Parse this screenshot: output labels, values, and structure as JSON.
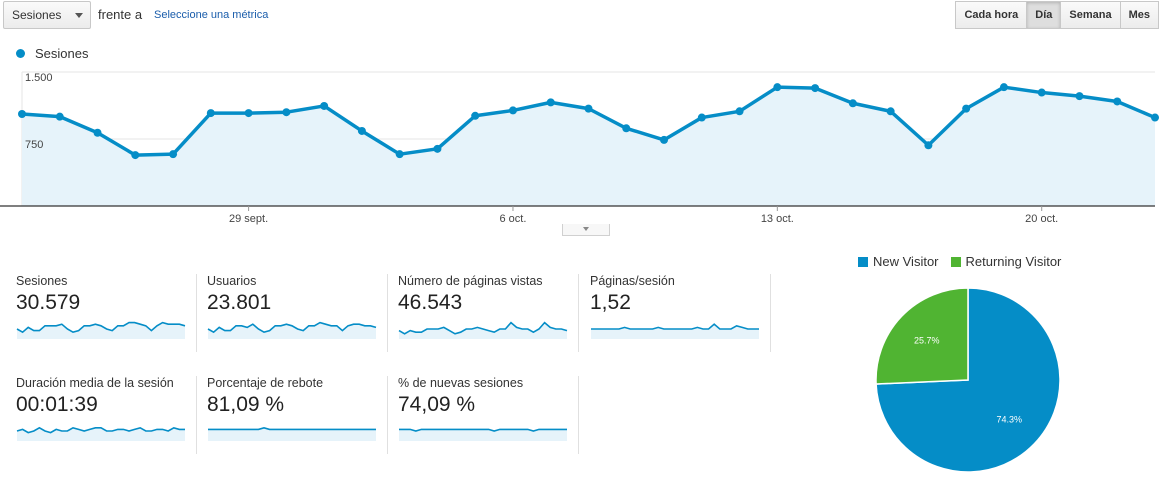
{
  "toolbar": {
    "metric_select": "Sesiones",
    "versus_label": "frente a",
    "select_metric_link": "Seleccione una métrica",
    "granularity": [
      "Cada hora",
      "Día",
      "Semana",
      "Mes"
    ],
    "granularity_selected": "Día"
  },
  "colors": {
    "accent": "#058dc7",
    "returning": "#50b432",
    "area_fill": "#e6f3fa"
  },
  "chart_data": [
    {
      "type": "line",
      "legend": [
        "Sesiones"
      ],
      "y_ticks": [
        "1.500",
        "750"
      ],
      "x_tick_labels": [
        "29 sept.",
        "6 oct.",
        "13 oct.",
        "20 oct."
      ],
      "ylim": [
        0,
        1500
      ],
      "series": [
        {
          "name": "Sesiones",
          "values": [
            1030,
            1000,
            820,
            570,
            580,
            1040,
            1040,
            1050,
            1120,
            840,
            580,
            640,
            1010,
            1070,
            1160,
            1090,
            870,
            740,
            990,
            1060,
            1330,
            1320,
            1150,
            1060,
            680,
            1090,
            1330,
            1270,
            1230,
            1170,
            990
          ]
        }
      ]
    },
    {
      "type": "pie",
      "legend": [
        "New Visitor",
        "Returning Visitor"
      ],
      "slices": [
        {
          "name": "New Visitor",
          "value": 74.3,
          "label": "74.3%",
          "color": "#058dc7"
        },
        {
          "name": "Returning Visitor",
          "value": 25.7,
          "label": "25.7%",
          "color": "#50b432"
        }
      ]
    }
  ],
  "stats": [
    {
      "name": "Sesiones",
      "value": "30.579",
      "spark": [
        5,
        3,
        6,
        4,
        4,
        7,
        7,
        7,
        8,
        5,
        3,
        4,
        7,
        7,
        8,
        7,
        5,
        4,
        7,
        7,
        9,
        9,
        8,
        7,
        4,
        7,
        9,
        8,
        8,
        8,
        7
      ]
    },
    {
      "name": "Usuarios",
      "value": "23.801",
      "spark": [
        5,
        3,
        6,
        4,
        4,
        7,
        7,
        6,
        8,
        5,
        3,
        4,
        7,
        7,
        8,
        7,
        5,
        4,
        7,
        7,
        9,
        8,
        7,
        7,
        4,
        7,
        8,
        8,
        7,
        7,
        6
      ]
    },
    {
      "name": "Número de páginas vistas",
      "value": "46.543",
      "spark": [
        4,
        2,
        4,
        3,
        3,
        5,
        5,
        5,
        6,
        4,
        2,
        3,
        5,
        5,
        6,
        5,
        4,
        3,
        5,
        5,
        9,
        6,
        5,
        5,
        3,
        5,
        9,
        6,
        5,
        5,
        4
      ]
    },
    {
      "name": "Páginas/sesión",
      "value": "1,52",
      "spark": [
        5,
        5,
        5,
        5,
        5,
        5,
        6,
        5,
        5,
        5,
        5,
        5,
        6,
        5,
        5,
        5,
        5,
        5,
        5,
        6,
        5,
        5,
        8,
        5,
        5,
        5,
        7,
        6,
        5,
        5,
        5
      ]
    },
    {
      "name": "Duración media de la sesión",
      "value": "00:01:39",
      "spark": [
        5,
        6,
        4,
        5,
        7,
        5,
        4,
        6,
        5,
        5,
        7,
        6,
        5,
        6,
        7,
        7,
        5,
        5,
        6,
        6,
        5,
        6,
        7,
        5,
        5,
        6,
        6,
        5,
        7,
        6,
        6
      ]
    },
    {
      "name": "Porcentaje de rebote",
      "value": "81,09 %",
      "spark": [
        6,
        6,
        6,
        6,
        6,
        6,
        6,
        6,
        6,
        6,
        7,
        6,
        6,
        6,
        6,
        6,
        6,
        6,
        6,
        6,
        6,
        6,
        6,
        6,
        6,
        6,
        6,
        6,
        6,
        6,
        6
      ]
    },
    {
      "name": "% de nuevas sesiones",
      "value": "74,09 %",
      "spark": [
        6,
        6,
        6,
        5,
        6,
        6,
        6,
        6,
        6,
        6,
        6,
        6,
        6,
        6,
        6,
        6,
        6,
        5,
        6,
        6,
        6,
        6,
        6,
        6,
        5,
        6,
        6,
        6,
        6,
        6,
        6
      ]
    }
  ]
}
